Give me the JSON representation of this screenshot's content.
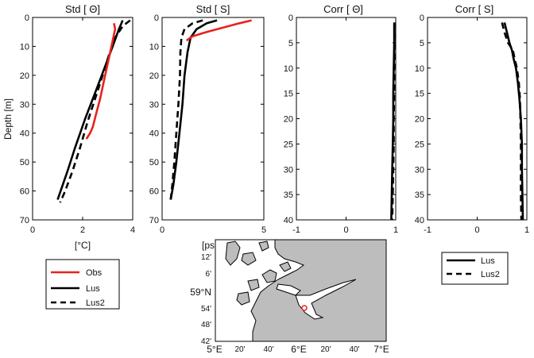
{
  "chart_data": [
    {
      "type": "line",
      "title": "Std [ Θ]",
      "xlabel": "[°C]",
      "ylabel": "Depth [m]",
      "xlim": [
        0,
        4
      ],
      "ylim": [
        0,
        70
      ],
      "xticks": [
        "0",
        "2",
        "4"
      ],
      "yticks": [
        "0",
        "10",
        "20",
        "30",
        "40",
        "50",
        "60",
        "70"
      ],
      "series": [
        {
          "name": "Obs",
          "color": "#e8211c",
          "dash": false,
          "x": [
            3.25,
            3.3,
            3.2,
            3.1,
            2.9,
            2.7,
            2.55,
            2.4,
            2.3,
            2.15
          ],
          "y": [
            2,
            4,
            8,
            12,
            20,
            28,
            33,
            38,
            40,
            42
          ]
        },
        {
          "name": "Lus",
          "color": "#000000",
          "dash": false,
          "x": [
            3.6,
            3.45,
            3.2,
            2.85,
            2.5,
            2.1,
            1.7,
            1.4,
            1.2,
            1.0
          ],
          "y": [
            1,
            4,
            10,
            18,
            26,
            35,
            45,
            53,
            58,
            63
          ]
        },
        {
          "name": "Lus2",
          "color": "#000000",
          "dash": true,
          "x": [
            3.9,
            3.6,
            3.3,
            3.05,
            2.8,
            2.5,
            2.2,
            1.9,
            1.6,
            1.3,
            1.1
          ],
          "y": [
            1,
            3,
            7,
            13,
            20,
            28,
            36,
            45,
            53,
            60,
            64
          ]
        }
      ]
    },
    {
      "type": "line",
      "title": "Std [ S]",
      "xlim": [
        0,
        5
      ],
      "ylim": [
        0,
        70
      ],
      "xticks": [
        "0",
        "5"
      ],
      "yticks": [
        "0",
        "10",
        "20",
        "30",
        "40",
        "50",
        "60",
        "70"
      ],
      "series": [
        {
          "name": "Obs",
          "color": "#e8211c",
          "dash": false,
          "x": [
            4.4,
            3.8,
            3.0,
            2.2,
            1.5,
            1.2
          ],
          "y": [
            1,
            2,
            3.5,
            5,
            6.5,
            8
          ]
        },
        {
          "name": "Lus",
          "color": "#000000",
          "dash": false,
          "x": [
            2.7,
            2.2,
            1.7,
            1.4,
            1.25,
            1.1,
            1.0,
            0.85,
            0.7,
            0.55,
            0.42
          ],
          "y": [
            1,
            2,
            4,
            7,
            12,
            20,
            30,
            40,
            50,
            58,
            63
          ]
        },
        {
          "name": "Lus2",
          "color": "#000000",
          "dash": true,
          "x": [
            2.0,
            1.5,
            1.1,
            0.95,
            0.9,
            0.88,
            0.8,
            0.7,
            0.6,
            0.5,
            0.42
          ],
          "y": [
            1,
            2,
            4,
            7,
            12,
            20,
            30,
            40,
            50,
            58,
            63
          ]
        }
      ]
    },
    {
      "type": "line",
      "title": "Corr [ Θ]",
      "xlim": [
        -1,
        1
      ],
      "ylim": [
        0,
        40
      ],
      "xticks": [
        "-1",
        "0",
        "1"
      ],
      "yticks": [
        "0",
        "5",
        "10",
        "15",
        "20",
        "25",
        "30",
        "35",
        "40"
      ],
      "series": [
        {
          "name": "Lus",
          "color": "#000000",
          "dash": false,
          "x": [
            0.97,
            0.97,
            0.96,
            0.95,
            0.95,
            0.94,
            0.93,
            0.92,
            0.91
          ],
          "y": [
            1,
            5,
            10,
            15,
            20,
            25,
            30,
            35,
            40
          ]
        },
        {
          "name": "Lus2",
          "color": "#000000",
          "dash": true,
          "x": [
            0.98,
            0.98,
            0.97,
            0.97,
            0.96,
            0.96,
            0.95,
            0.94,
            0.93
          ],
          "y": [
            1,
            5,
            10,
            15,
            20,
            25,
            30,
            35,
            40
          ]
        }
      ]
    },
    {
      "type": "line",
      "title": "Corr [ S]",
      "xlim": [
        -1,
        1
      ],
      "ylim": [
        0,
        40
      ],
      "xticks": [
        "-1",
        "0",
        "1"
      ],
      "yticks": [
        "0",
        "5",
        "10",
        "15",
        "20",
        "25",
        "30",
        "35",
        "40"
      ],
      "series": [
        {
          "name": "Lus",
          "color": "#000000",
          "dash": false,
          "x": [
            0.55,
            0.6,
            0.65,
            0.7,
            0.73,
            0.78,
            0.82,
            0.85,
            0.88,
            0.9,
            0.9,
            0.91,
            0.92
          ],
          "y": [
            1,
            3,
            5,
            6.5,
            8,
            10,
            13,
            16,
            20,
            25,
            30,
            35,
            40
          ]
        },
        {
          "name": "Lus2",
          "color": "#000000",
          "dash": true,
          "x": [
            0.5,
            0.55,
            0.62,
            0.72,
            0.75,
            0.8,
            0.84,
            0.86,
            0.87,
            0.88,
            0.88,
            0.88,
            0.89
          ],
          "y": [
            1,
            3,
            5,
            6.5,
            8,
            10,
            13,
            16,
            20,
            25,
            30,
            35,
            40
          ]
        }
      ]
    }
  ],
  "legend_left": [
    "Obs",
    "Lus",
    "Lus2"
  ],
  "legend_right": [
    "Lus",
    "Lus2"
  ],
  "map": {
    "lat_label": "59°N",
    "lat_ticks": [
      "12'",
      "6'",
      "54'",
      "48'",
      "42'"
    ],
    "lon_ticks": [
      "5°E",
      "20'",
      "40'",
      "6°E",
      "20'",
      "40'",
      "7°E"
    ],
    "partial_unit": "[psu",
    "land_color": "#bdbdbd",
    "marker_color": "#e8211c"
  }
}
